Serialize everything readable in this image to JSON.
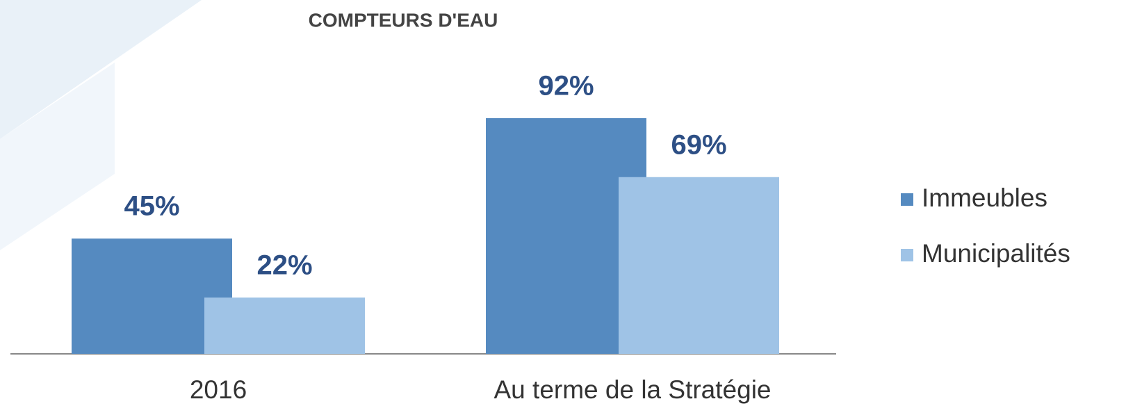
{
  "chart_data": {
    "type": "bar",
    "title": "COMPTEURS D'EAU",
    "categories": [
      "2016",
      "Au terme de la Stratégie"
    ],
    "series": [
      {
        "name": "Immeubles",
        "color": "#558ac0",
        "values": [
          45,
          92
        ],
        "value_labels": [
          "45%",
          "92%"
        ]
      },
      {
        "name": "Municipalités",
        "color": "#9fc3e6",
        "values": [
          22,
          69
        ],
        "value_labels": [
          "22%",
          "69%"
        ]
      }
    ],
    "legend": "right"
  }
}
